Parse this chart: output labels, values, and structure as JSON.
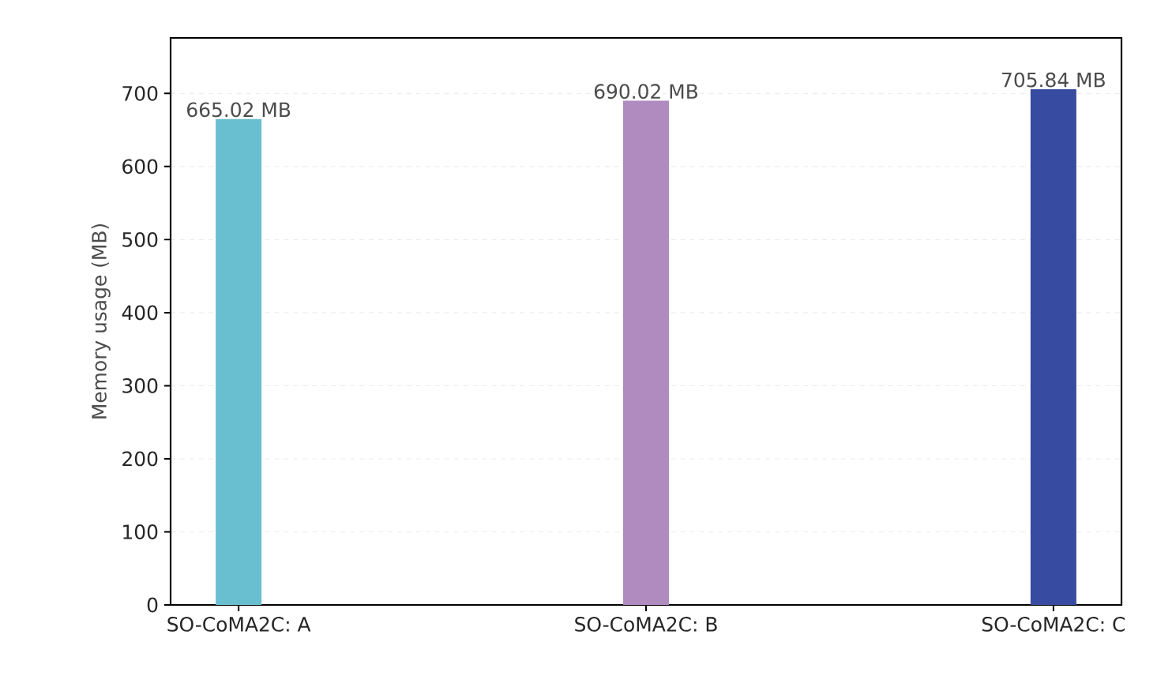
{
  "chart_data": {
    "type": "bar",
    "ylabel": "Memory usage (MB)",
    "categories": [
      "SO-CoMA2C: A",
      "SO-CoMA2C: B",
      "SO-CoMA2C: C"
    ],
    "values": [
      665.02,
      690.02,
      705.84
    ],
    "colors": [
      "#69bfcf",
      "#b08bbf",
      "#374ba0"
    ],
    "value_labels": [
      "665.02 MB",
      "690.02 MB",
      "705.84 MB"
    ],
    "ylim": [
      0,
      776
    ],
    "yticks": [
      0,
      100,
      200,
      300,
      400,
      500,
      600,
      700
    ],
    "grid": "y"
  }
}
